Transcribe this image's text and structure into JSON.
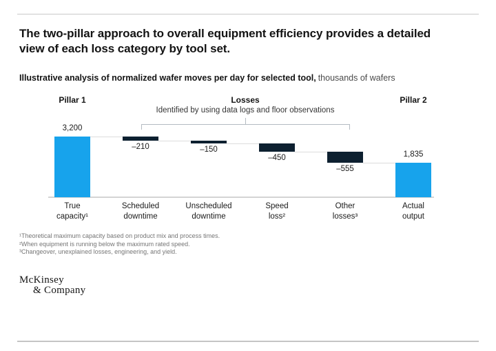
{
  "page": {
    "title": "The two-pillar approach to overall equipment efficiency provides a detailed view of each loss category by tool set."
  },
  "chart_data": {
    "type": "bar",
    "subtype": "waterfall",
    "title": "Illustrative analysis of normalized wafer moves per day for selected tool,",
    "units": "thousands of wafers",
    "categories": [
      "True capacity¹",
      "Scheduled downtime",
      "Unscheduled downtime",
      "Speed loss²",
      "Other losses³",
      "Actual output"
    ],
    "values": [
      3200,
      -210,
      -150,
      -450,
      -555,
      1835
    ],
    "bar_types": [
      "total",
      "loss",
      "loss",
      "loss",
      "loss",
      "total"
    ],
    "value_labels": [
      "3,200",
      "–210",
      "–150",
      "–450",
      "–555",
      "1,835"
    ],
    "ylim": [
      0,
      3200
    ],
    "grid": false,
    "legend": "none",
    "colors": {
      "total": "#17A3EC",
      "loss": "#0D2030"
    },
    "annotations": {
      "pillar1": "Pillar 1",
      "pillar2": "Pillar 2",
      "losses_title": "Losses",
      "losses_subtitle": "Identified by using data logs and floor observations",
      "losses_span_categories": [
        "Scheduled downtime",
        "Other losses³"
      ]
    }
  },
  "footnotes": [
    "¹Theoretical maximum capacity based on product mix and process times.",
    "²When equipment is running below the maximum rated speed.",
    "³Changeover, unexplained losses, engineering, and yield."
  ],
  "logo": {
    "line1": "McKinsey",
    "line2": "& Company"
  }
}
